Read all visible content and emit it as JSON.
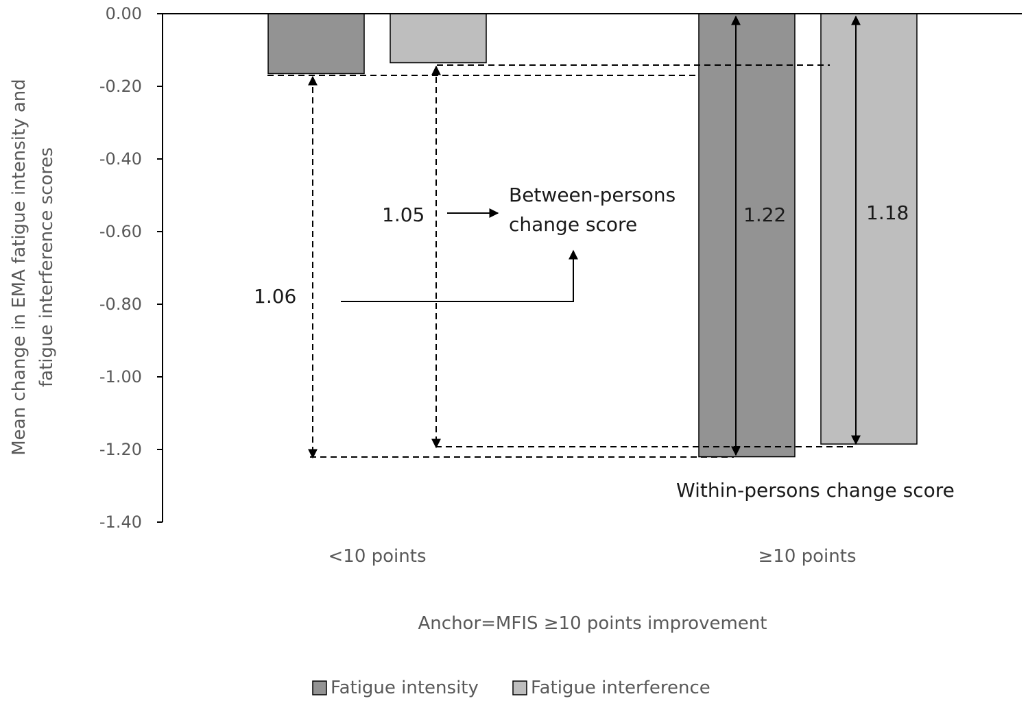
{
  "chart_data": {
    "type": "bar",
    "categories": [
      "<10 points",
      "≥10 points"
    ],
    "series": [
      {
        "name": "Fatigue intensity",
        "values": [
          -0.165,
          -1.22
        ],
        "color": "#939393"
      },
      {
        "name": "Fatigue interference",
        "values": [
          -0.135,
          -1.185
        ],
        "color": "#bebebe"
      }
    ],
    "ylim": [
      -1.4,
      0
    ],
    "yticks": [
      "0.00",
      "-0.20",
      "-0.40",
      "-0.60",
      "-0.80",
      "-1.00",
      "-1.20",
      "-1.40"
    ],
    "ytick_values": [
      0,
      -0.2,
      -0.4,
      -0.6,
      -0.8,
      -1.0,
      -1.2,
      -1.4
    ],
    "ylabel_lines": [
      "Mean change in EMA fatigue intensity and",
      "fatigue interference scores"
    ],
    "xlabel": "Anchor=MFIS ≥10 points improvement",
    "legend_position": "bottom",
    "annotations": {
      "between_label_lines": [
        "Between-persons",
        "change score"
      ],
      "within_label": "Within-persons change score",
      "between_intensity": "1.06",
      "between_interference": "1.05",
      "within_intensity": "1.22",
      "within_interference": "1.18"
    }
  }
}
